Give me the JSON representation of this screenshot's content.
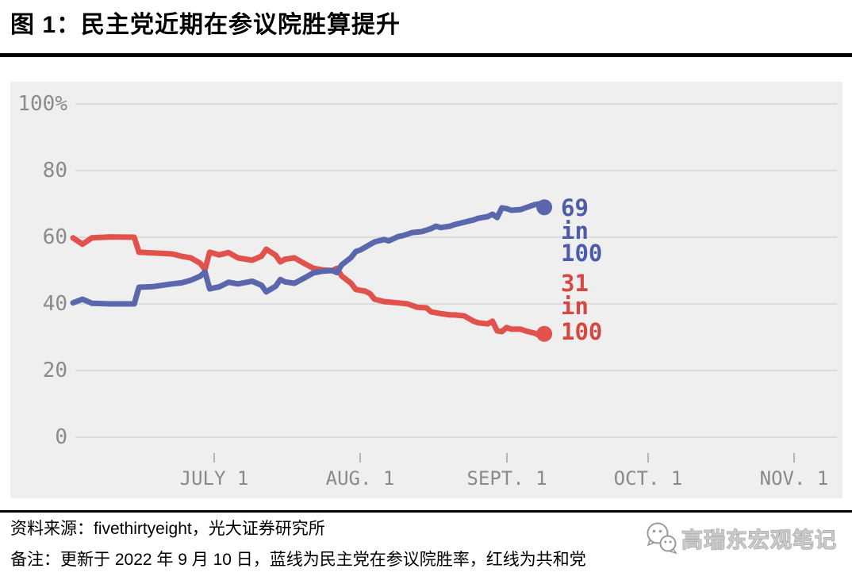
{
  "header": {
    "title": "图 1：民主党近期在参议院胜算提升"
  },
  "footer": {
    "source": "资料来源：fivethirtyeight，光大证券研究所",
    "note": "备注：更新于 2022 年 9 月 10 日，蓝线为民主党在参议院胜率，红线为共和党",
    "watermark_text": "高瑞东宏观笔记",
    "watermark_icon": "wechat-icon"
  },
  "colors": {
    "dem_blue": "#5a67ad",
    "dem_blue_text": "#4d5ca6",
    "rep_red": "#e0524b",
    "rep_red_text": "#d64742",
    "panel_bg": "#efeff0",
    "gridline": "#dcdcdc",
    "axis_text": "#8a8a8a",
    "rule_black": "#000000"
  },
  "chart_data": {
    "type": "line",
    "title": "",
    "xlabel": "",
    "ylabel": "",
    "grid": true,
    "x_axis": {
      "tick_labels": [
        "JULY 1",
        "AUG. 1",
        "SEPT. 1",
        "OCT. 1",
        "NOV. 1"
      ],
      "tick_days": [
        30,
        61,
        92,
        122,
        153
      ],
      "domain_days_from_june1": [
        0,
        153
      ]
    },
    "y_axis": {
      "tick_labels": [
        "100%",
        "80",
        "60",
        "40",
        "20",
        "0"
      ],
      "tick_values": [
        100,
        80,
        60,
        40,
        20,
        0
      ],
      "range": [
        0,
        100
      ]
    },
    "series": [
      {
        "name": "民主党 (蓝线)",
        "color": "#5a67ad",
        "end_value": 69,
        "end_label": [
          "69",
          "in",
          "100"
        ],
        "points": [
          [
            0,
            40.3
          ],
          [
            2,
            41.4
          ],
          [
            4,
            40.2
          ],
          [
            8,
            40.0
          ],
          [
            13,
            40.0
          ],
          [
            14,
            45.0
          ],
          [
            17,
            45.2
          ],
          [
            21,
            46.0
          ],
          [
            23,
            46.3
          ],
          [
            25,
            47.1
          ],
          [
            27,
            48.3
          ],
          [
            28,
            49.6
          ],
          [
            29,
            44.5
          ],
          [
            31,
            45.1
          ],
          [
            33,
            46.5
          ],
          [
            35,
            46.0
          ],
          [
            38,
            46.8
          ],
          [
            40,
            45.6
          ],
          [
            41,
            43.6
          ],
          [
            43,
            45.3
          ],
          [
            44,
            47.3
          ],
          [
            45,
            46.6
          ],
          [
            47,
            46.2
          ],
          [
            49,
            47.7
          ],
          [
            51,
            49.3
          ],
          [
            53,
            49.8
          ],
          [
            55,
            50.0
          ],
          [
            56,
            49.4
          ],
          [
            57,
            51.7
          ],
          [
            59,
            53.9
          ],
          [
            60,
            55.7
          ],
          [
            61,
            56.2
          ],
          [
            63,
            57.8
          ],
          [
            64,
            58.6
          ],
          [
            66,
            59.3
          ],
          [
            67,
            58.9
          ],
          [
            69,
            60.2
          ],
          [
            70,
            60.5
          ],
          [
            72,
            61.4
          ],
          [
            74,
            61.7
          ],
          [
            76,
            62.6
          ],
          [
            77,
            63.3
          ],
          [
            78,
            62.9
          ],
          [
            80,
            63.3
          ],
          [
            81,
            63.8
          ],
          [
            83,
            64.5
          ],
          [
            85,
            65.2
          ],
          [
            86,
            65.7
          ],
          [
            88,
            66.2
          ],
          [
            89,
            66.9
          ],
          [
            90,
            65.9
          ],
          [
            91,
            68.8
          ],
          [
            92,
            68.6
          ],
          [
            93,
            68.1
          ],
          [
            95,
            68.3
          ],
          [
            96,
            68.8
          ],
          [
            98,
            69.8
          ],
          [
            99,
            70.0
          ],
          [
            100,
            69.0
          ]
        ]
      },
      {
        "name": "共和党 (红线)",
        "color": "#e0524b",
        "end_value": 31,
        "end_label": [
          "31",
          "in",
          "100"
        ],
        "points": [
          [
            0,
            59.8
          ],
          [
            2,
            57.9
          ],
          [
            4,
            59.8
          ],
          [
            8,
            60.1
          ],
          [
            13,
            60.0
          ],
          [
            14,
            55.5
          ],
          [
            17,
            55.3
          ],
          [
            21,
            55.0
          ],
          [
            23,
            54.3
          ],
          [
            25,
            53.8
          ],
          [
            27,
            52.2
          ],
          [
            28,
            50.3
          ],
          [
            29,
            55.5
          ],
          [
            31,
            54.7
          ],
          [
            33,
            55.4
          ],
          [
            35,
            53.8
          ],
          [
            38,
            53.1
          ],
          [
            40,
            54.3
          ],
          [
            41,
            56.4
          ],
          [
            43,
            54.6
          ],
          [
            44,
            52.6
          ],
          [
            45,
            53.4
          ],
          [
            47,
            53.8
          ],
          [
            49,
            52.2
          ],
          [
            51,
            50.7
          ],
          [
            53,
            50.2
          ],
          [
            55,
            50.0
          ],
          [
            56,
            50.7
          ],
          [
            57,
            48.4
          ],
          [
            59,
            46.2
          ],
          [
            60,
            44.3
          ],
          [
            62,
            43.8
          ],
          [
            63,
            43.1
          ],
          [
            64,
            41.4
          ],
          [
            66,
            40.7
          ],
          [
            69,
            40.3
          ],
          [
            71,
            40.0
          ],
          [
            73,
            39.0
          ],
          [
            75,
            38.8
          ],
          [
            76,
            37.6
          ],
          [
            78,
            37.1
          ],
          [
            80,
            36.7
          ],
          [
            81,
            36.7
          ],
          [
            83,
            36.4
          ],
          [
            85,
            34.8
          ],
          [
            86,
            34.3
          ],
          [
            88,
            34.0
          ],
          [
            89,
            34.8
          ],
          [
            90,
            31.9
          ],
          [
            91,
            31.7
          ],
          [
            92,
            32.9
          ],
          [
            93,
            32.4
          ],
          [
            95,
            32.4
          ],
          [
            96,
            31.9
          ],
          [
            98,
            31.2
          ],
          [
            99,
            30.5
          ],
          [
            100,
            31.0
          ]
        ]
      }
    ]
  }
}
